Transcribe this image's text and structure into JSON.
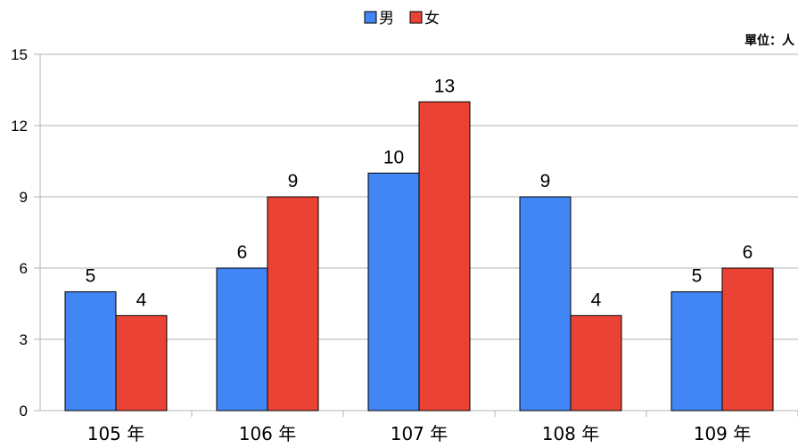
{
  "chart_data": {
    "type": "bar",
    "categories": [
      "105 年",
      "106 年",
      "107 年",
      "108 年",
      "109 年"
    ],
    "series": [
      {
        "name": "男",
        "color": "#4285f4",
        "values": [
          5,
          6,
          10,
          9,
          5
        ]
      },
      {
        "name": "女",
        "color": "#ea4335",
        "values": [
          4,
          9,
          13,
          4,
          6
        ]
      }
    ],
    "ylim": [
      0,
      15
    ],
    "yticks": [
      0,
      3,
      6,
      9,
      12,
      15
    ],
    "unit_label": "單位：人",
    "legend_position": "top-center",
    "grid": true,
    "data_labels": true
  }
}
